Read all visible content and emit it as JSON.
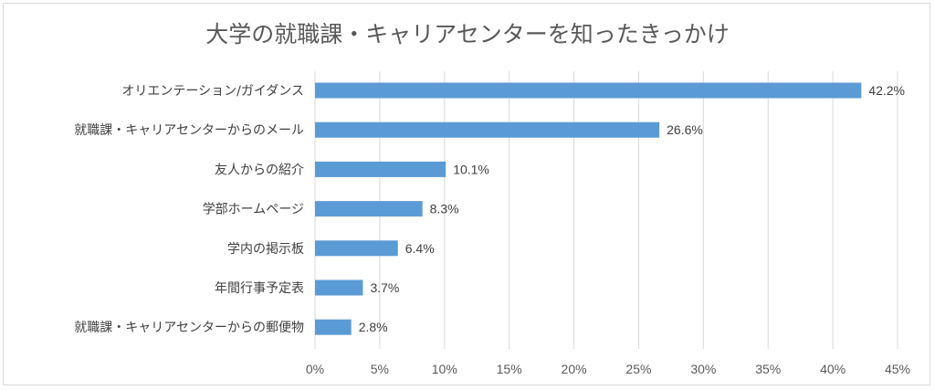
{
  "chart_data": {
    "type": "bar",
    "orientation": "horizontal",
    "title": "大学の就職課・キャリアセンターを知ったきっかけ",
    "categories": [
      "オリエンテーション/ガイダンス",
      "就職課・キャリアセンターからのメール",
      "友人からの紹介",
      "学部ホームページ",
      "学内の掲示板",
      "年間行事予定表",
      "就職課・キャリアセンターからの郵便物"
    ],
    "values": [
      42.2,
      26.6,
      10.1,
      8.3,
      6.4,
      3.7,
      2.8
    ],
    "data_labels": [
      "42.2%",
      "26.6%",
      "10.1%",
      "8.3%",
      "6.4%",
      "3.7%",
      "2.8%"
    ],
    "xlim": [
      0,
      45
    ],
    "xticks": [
      0,
      5,
      10,
      15,
      20,
      25,
      30,
      35,
      40,
      45
    ],
    "xtick_labels": [
      "0%",
      "5%",
      "10%",
      "15%",
      "20%",
      "25%",
      "30%",
      "35%",
      "40%",
      "45%"
    ],
    "xlabel": "",
    "ylabel": "",
    "grid": "vertical",
    "legend": "none",
    "bar_color": "#5b9bd5",
    "grid_color": "#d9d9d9"
  }
}
